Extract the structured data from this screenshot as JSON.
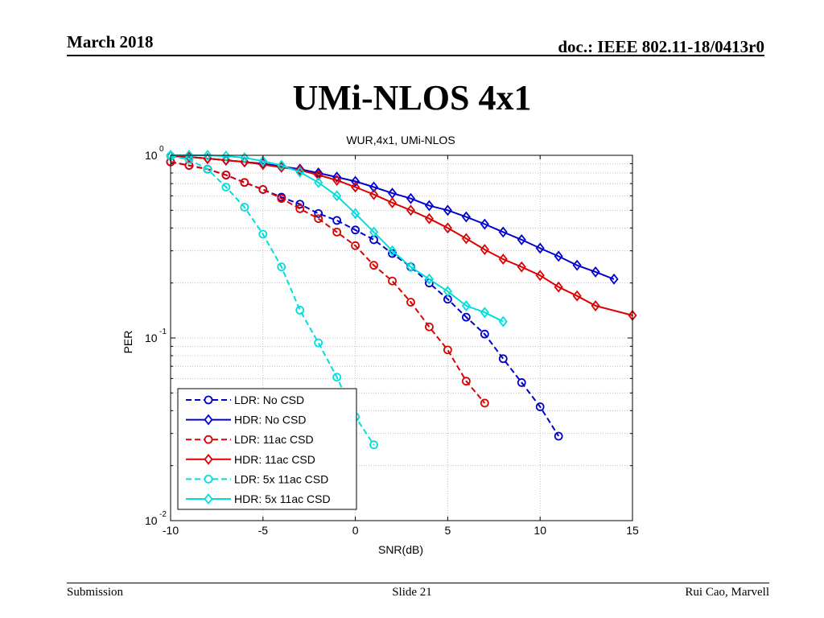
{
  "slide": {
    "date": "March 2018",
    "doc": "doc.: IEEE 802.11-18/0413r0",
    "title": "UMi-NLOS 4x1",
    "footer_left": "Submission",
    "footer_center": "Slide 21",
    "footer_right": "Rui Cao, Marvell"
  },
  "chart_data": {
    "type": "line",
    "title": "WUR,4x1, UMi-NLOS",
    "xlabel": "SNR(dB)",
    "ylabel": "PER",
    "xlim": [
      -10,
      15
    ],
    "ylim": [
      0.01,
      1
    ],
    "yscale": "log",
    "grid": true,
    "legend_position": "bottom-left",
    "x_ticks": [
      -10,
      -5,
      0,
      5,
      10,
      15
    ],
    "y_ticks": [
      {
        "value": 1,
        "base": "10",
        "exp": "0"
      },
      {
        "value": 0.1,
        "base": "10",
        "exp": "-1"
      },
      {
        "value": 0.01,
        "base": "10",
        "exp": "-2"
      }
    ],
    "series": [
      {
        "name": "LDR: No CSD",
        "color": "#0000cc",
        "dash": true,
        "marker": "circle",
        "x": [
          -10,
          -9,
          -8,
          -7,
          -6,
          -5,
          -4,
          -3,
          -2,
          -1,
          0,
          1,
          2,
          3,
          4,
          5,
          6,
          7,
          8,
          9,
          10,
          11
        ],
        "y": [
          0.92,
          0.88,
          0.84,
          0.78,
          0.71,
          0.65,
          0.59,
          0.54,
          0.48,
          0.44,
          0.39,
          0.345,
          0.29,
          0.245,
          0.2,
          0.163,
          0.13,
          0.105,
          0.077,
          0.057,
          0.042,
          0.029
        ]
      },
      {
        "name": "HDR: No CSD",
        "color": "#0000cc",
        "dash": false,
        "marker": "diamond",
        "x": [
          -10,
          -9,
          -8,
          -7,
          -6,
          -5,
          -4,
          -3,
          -2,
          -1,
          0,
          1,
          2,
          3,
          4,
          5,
          6,
          7,
          8,
          9,
          10,
          11,
          12,
          13,
          14
        ],
        "y": [
          0.99,
          0.98,
          0.96,
          0.94,
          0.92,
          0.9,
          0.87,
          0.84,
          0.8,
          0.76,
          0.72,
          0.67,
          0.62,
          0.58,
          0.53,
          0.5,
          0.46,
          0.42,
          0.38,
          0.345,
          0.31,
          0.28,
          0.25,
          0.23,
          0.21
        ]
      },
      {
        "name": "LDR: 11ac CSD",
        "color": "#dd0000",
        "dash": true,
        "marker": "circle",
        "x": [
          -10,
          -9,
          -8,
          -7,
          -6,
          -5,
          -4,
          -3,
          -2,
          -1,
          0,
          1,
          2,
          3,
          4,
          5,
          6,
          7
        ],
        "y": [
          0.92,
          0.88,
          0.84,
          0.78,
          0.71,
          0.65,
          0.58,
          0.51,
          0.45,
          0.38,
          0.32,
          0.25,
          0.205,
          0.157,
          0.115,
          0.086,
          0.058,
          0.044
        ]
      },
      {
        "name": "HDR: 11ac CSD",
        "color": "#dd0000",
        "dash": false,
        "marker": "diamond",
        "x": [
          -10,
          -9,
          -8,
          -7,
          -6,
          -5,
          -4,
          -3,
          -2,
          -1,
          0,
          1,
          2,
          3,
          4,
          5,
          6,
          7,
          8,
          9,
          10,
          11,
          12,
          13,
          15
        ],
        "y": [
          0.99,
          0.98,
          0.96,
          0.94,
          0.92,
          0.89,
          0.86,
          0.83,
          0.78,
          0.73,
          0.67,
          0.61,
          0.55,
          0.5,
          0.45,
          0.4,
          0.35,
          0.305,
          0.27,
          0.245,
          0.22,
          0.19,
          0.17,
          0.15,
          0.133
        ]
      },
      {
        "name": "LDR: 5x 11ac CSD",
        "color": "#00dddd",
        "dash": true,
        "marker": "circle",
        "x": [
          -10,
          -9,
          -8,
          -7,
          -6,
          -5,
          -4,
          -3,
          -2,
          -1,
          0,
          1
        ],
        "y": [
          0.99,
          0.95,
          0.84,
          0.67,
          0.52,
          0.37,
          0.245,
          0.142,
          0.094,
          0.061,
          0.037,
          0.026
        ]
      },
      {
        "name": "HDR: 5x 11ac CSD",
        "color": "#00dddd",
        "dash": false,
        "marker": "diamond",
        "x": [
          -10,
          -9,
          -8,
          -7,
          -6,
          -5,
          -4,
          -3,
          -2,
          -1,
          0,
          1,
          2,
          3,
          4,
          5,
          6,
          7,
          8
        ],
        "y": [
          1.0,
          1.0,
          1.0,
          0.99,
          0.97,
          0.93,
          0.88,
          0.81,
          0.71,
          0.6,
          0.48,
          0.38,
          0.3,
          0.245,
          0.21,
          0.18,
          0.15,
          0.138,
          0.123
        ]
      }
    ]
  }
}
